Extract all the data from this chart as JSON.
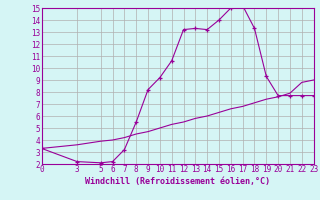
{
  "xlabel": "Windchill (Refroidissement éolien,°C)",
  "x_main": [
    0,
    3,
    5,
    6,
    7,
    8,
    9,
    10,
    11,
    12,
    13,
    14,
    15,
    16,
    17,
    18,
    19,
    20,
    21,
    22,
    23
  ],
  "y_main": [
    3.3,
    2.2,
    2.1,
    2.2,
    3.2,
    5.5,
    8.2,
    9.2,
    10.6,
    13.2,
    13.3,
    13.2,
    14.0,
    15.0,
    15.2,
    13.3,
    9.3,
    7.7,
    7.7,
    7.7,
    7.7
  ],
  "x_ref": [
    0,
    3,
    5,
    6,
    7,
    8,
    9,
    10,
    11,
    12,
    13,
    14,
    15,
    16,
    17,
    18,
    19,
    20,
    21,
    22,
    23
  ],
  "y_ref": [
    3.3,
    3.6,
    3.9,
    4.0,
    4.2,
    4.5,
    4.7,
    5.0,
    5.3,
    5.5,
    5.8,
    6.0,
    6.3,
    6.6,
    6.8,
    7.1,
    7.4,
    7.6,
    7.9,
    8.8,
    9.0
  ],
  "line_color": "#990099",
  "bg_color": "#d5f5f5",
  "grid_color": "#b0b0b0",
  "ylim": [
    2,
    15
  ],
  "xlim": [
    0,
    23
  ],
  "yticks": [
    2,
    3,
    4,
    5,
    6,
    7,
    8,
    9,
    10,
    11,
    12,
    13,
    14,
    15
  ],
  "xticks": [
    0,
    3,
    5,
    6,
    7,
    8,
    9,
    10,
    11,
    12,
    13,
    14,
    15,
    16,
    17,
    18,
    19,
    20,
    21,
    22,
    23
  ],
  "tick_fontsize": 5.5,
  "xlabel_fontsize": 6.0
}
